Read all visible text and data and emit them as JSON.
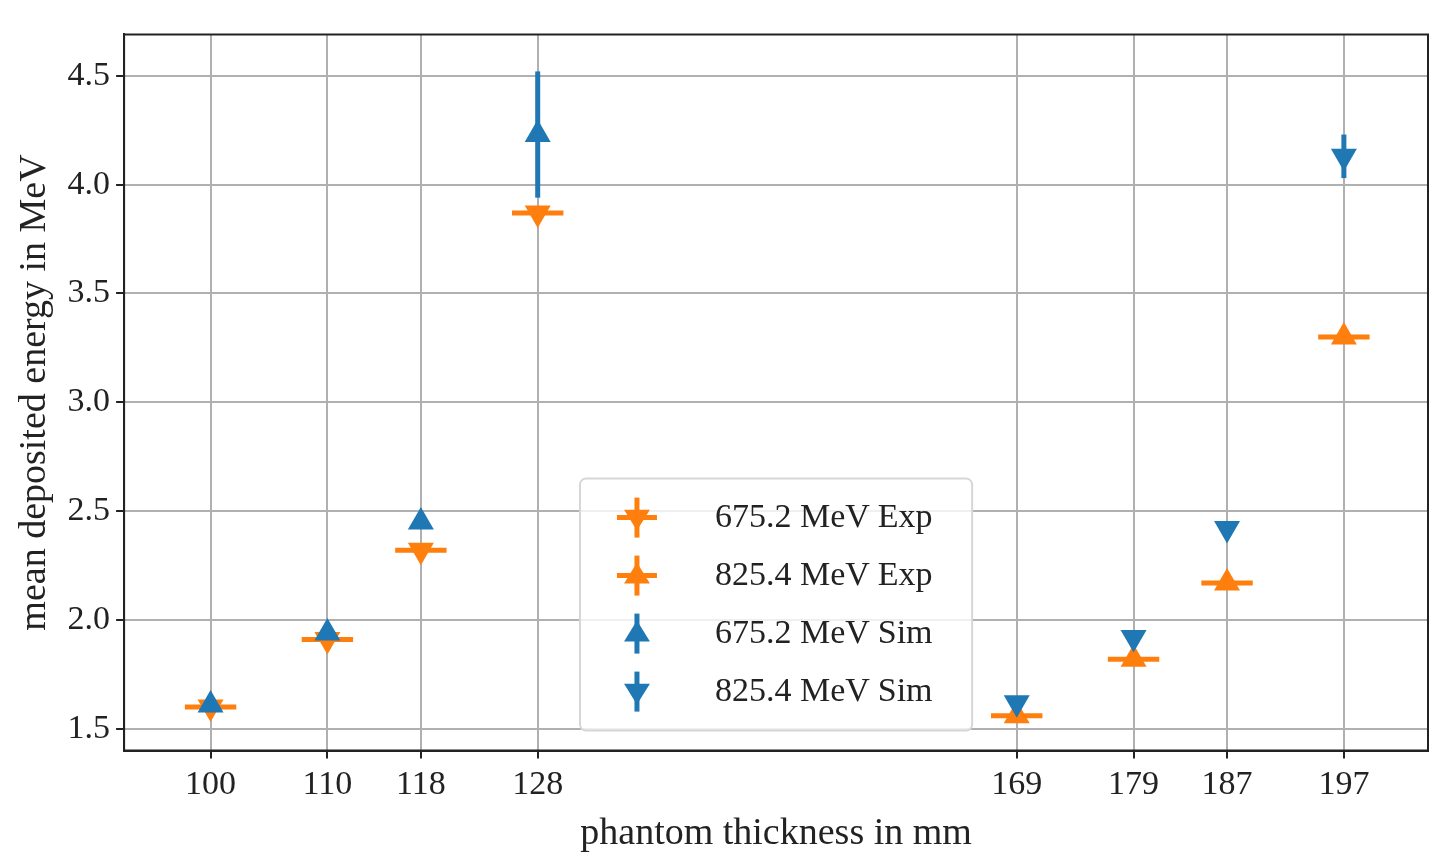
{
  "chart_data": {
    "type": "scatter",
    "xlabel": "phantom thickness in mm",
    "ylabel": "mean deposited energy in MeV",
    "xlim": [
      92.6,
      204.2
    ],
    "ylim": [
      1.4,
      4.69
    ],
    "xticks": [
      100,
      110,
      118,
      128,
      169,
      179,
      187,
      197
    ],
    "yticks": [
      1.5,
      {
        "value": 2,
        "label": "2.0"
      },
      2.5,
      {
        "value": 3,
        "label": "3.0"
      },
      3.5,
      {
        "value": 4,
        "label": "4.0"
      },
      4.5
    ],
    "grid": true,
    "legend": "bottom",
    "series": [
      {
        "name": "675.2 MeV Exp",
        "color": "#ff7f0e",
        "marker": "triangle_down",
        "x": [
          100,
          110,
          118,
          128
        ],
        "values": [
          1.6,
          1.91,
          2.32,
          3.87
        ],
        "xerrors": [
          2.2,
          2.2,
          2.2,
          2.2
        ]
      },
      {
        "name": "825.4 MeV Exp",
        "color": "#ff7f0e",
        "marker": "triangle",
        "x": [
          169,
          179,
          187,
          197
        ],
        "values": [
          1.56,
          1.82,
          2.17,
          3.3
        ],
        "xerrors": [
          2.2,
          2.2,
          2.2,
          2.2
        ]
      },
      {
        "name": "675.2 MeV Sim",
        "color": "#1f77b4",
        "marker": "triangle",
        "x": [
          100,
          110,
          118,
          128
        ],
        "values": [
          1.61,
          1.94,
          2.45,
          4.23
        ],
        "errors": [
          null,
          null,
          null,
          0.29
        ]
      },
      {
        "name": "825.4 MeV Sim",
        "color": "#1f77b4",
        "marker": "triangle_down",
        "x": [
          169,
          179,
          187,
          197
        ],
        "values": [
          1.62,
          1.92,
          2.42,
          4.13
        ],
        "errors": [
          null,
          null,
          null,
          0.1
        ]
      }
    ]
  }
}
